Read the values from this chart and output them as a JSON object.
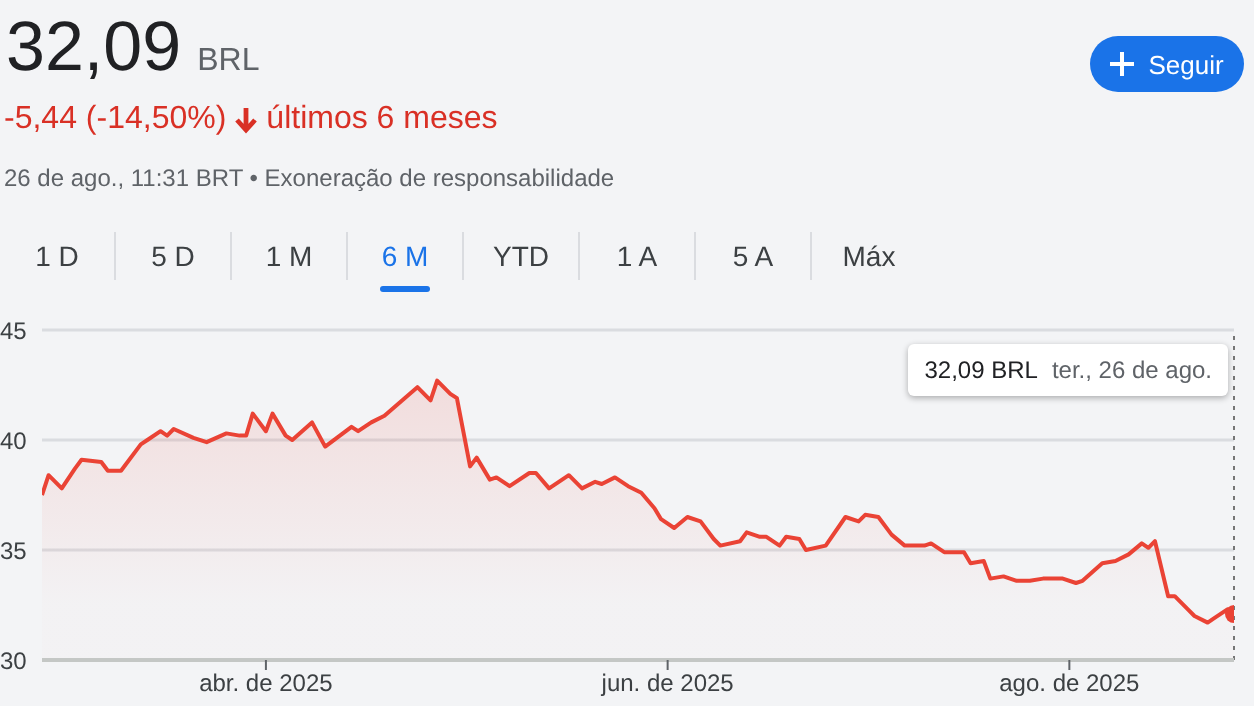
{
  "chart_data": {
    "type": "area",
    "title": "32,09",
    "annotations": [
      "BRL",
      "-5,44 (-14,50%)",
      "últimos 6 meses",
      "26 de ago., 11:31 BRT • Exoneração de responsabilidade",
      "Seguir",
      "1 D",
      "5 D",
      "1 M",
      "6 M",
      "YTD",
      "1 A",
      "5 A",
      "Máx",
      "32,09 BRL",
      "ter., 26 de ago."
    ],
    "x": [
      "2025-02-26",
      "2025-02-27",
      "2025-03-01",
      "2025-03-03",
      "2025-03-04",
      "2025-03-07",
      "2025-03-08",
      "2025-03-10",
      "2025-03-13",
      "2025-03-14",
      "2025-03-16",
      "2025-03-17",
      "2025-03-18",
      "2025-03-21",
      "2025-03-23",
      "2025-03-26",
      "2025-03-28",
      "2025-03-29",
      "2025-03-30",
      "2025-04-01",
      "2025-04-02",
      "2025-04-04",
      "2025-04-05",
      "2025-04-08",
      "2025-04-10",
      "2025-04-14",
      "2025-04-15",
      "2025-04-17",
      "2025-04-19",
      "2025-04-24",
      "2025-04-26",
      "2025-04-27",
      "2025-04-29",
      "2025-04-30",
      "2025-05-02",
      "2025-05-03",
      "2025-05-05",
      "2025-05-06",
      "2025-05-08",
      "2025-05-11",
      "2025-05-12",
      "2025-05-14",
      "2025-05-17",
      "2025-05-19",
      "2025-05-21",
      "2025-05-22",
      "2025-05-24",
      "2025-05-26",
      "2025-05-28",
      "2025-05-30",
      "2025-05-31",
      "2025-06-02",
      "2025-06-04",
      "2025-06-06",
      "2025-06-08",
      "2025-06-09",
      "2025-06-12",
      "2025-06-13",
      "2025-06-15",
      "2025-06-16",
      "2025-06-18",
      "2025-06-19",
      "2025-06-21",
      "2025-06-22",
      "2025-06-25",
      "2025-06-28",
      "2025-06-30",
      "2025-07-01",
      "2025-07-03",
      "2025-07-05",
      "2025-07-07",
      "2025-07-10",
      "2025-07-11",
      "2025-07-13",
      "2025-07-16",
      "2025-07-17",
      "2025-07-19",
      "2025-07-20",
      "2025-07-22",
      "2025-07-24",
      "2025-07-26",
      "2025-07-28",
      "2025-07-31",
      "2025-08-02",
      "2025-08-03",
      "2025-08-06",
      "2025-08-08",
      "2025-08-10",
      "2025-08-12",
      "2025-08-13",
      "2025-08-14",
      "2025-08-16",
      "2025-08-17",
      "2025-08-19",
      "2025-08-20",
      "2025-08-22",
      "2025-08-23",
      "2025-08-25",
      "2025-08-26"
    ],
    "series": [
      {
        "color": "#ea4335",
        "values": [
          37.5,
          38.4,
          37.8,
          38.7,
          39.1,
          39.0,
          38.6,
          38.6,
          39.8,
          40.0,
          40.4,
          40.2,
          40.5,
          40.1,
          39.9,
          40.3,
          40.2,
          40.2,
          41.2,
          40.4,
          41.2,
          40.2,
          40.0,
          40.8,
          39.7,
          40.6,
          40.4,
          40.8,
          41.1,
          42.4,
          41.8,
          42.7,
          42.1,
          41.9,
          38.8,
          39.2,
          38.2,
          38.3,
          37.9,
          38.5,
          38.5,
          37.8,
          38.4,
          37.8,
          38.1,
          38.0,
          38.3,
          37.9,
          37.6,
          36.9,
          36.4,
          36.0,
          36.5,
          36.3,
          35.5,
          35.2,
          35.4,
          35.8,
          35.6,
          35.6,
          35.2,
          35.6,
          35.5,
          35.0,
          35.2,
          36.5,
          36.3,
          36.6,
          36.5,
          35.7,
          35.2,
          35.2,
          35.3,
          34.9,
          34.9,
          34.4,
          34.5,
          33.7,
          33.8,
          33.6,
          33.6,
          33.7,
          33.7,
          33.5,
          33.6,
          34.4,
          34.5,
          34.8,
          35.3,
          35.1,
          35.4,
          32.9,
          32.9,
          32.3,
          32.0,
          31.7,
          31.9,
          32.3,
          32.09
        ]
      }
    ],
    "xlim": [
      "2025-02-26",
      "2025-08-26"
    ],
    "xticks": [
      {
        "value": "2025-04-01",
        "label": "abr. de 2025"
      },
      {
        "value": "2025-06-01",
        "label": "jun. de 2025"
      },
      {
        "value": "2025-08-01",
        "label": "ago. de 2025"
      }
    ],
    "ylim": [
      30,
      45
    ],
    "yticks": [
      30,
      35,
      40,
      45
    ],
    "grid": "y",
    "ref_lines": [
      {
        "axis": "x",
        "value": "2025-08-26",
        "color": "#757575",
        "line_style": "dotted"
      }
    ]
  }
}
